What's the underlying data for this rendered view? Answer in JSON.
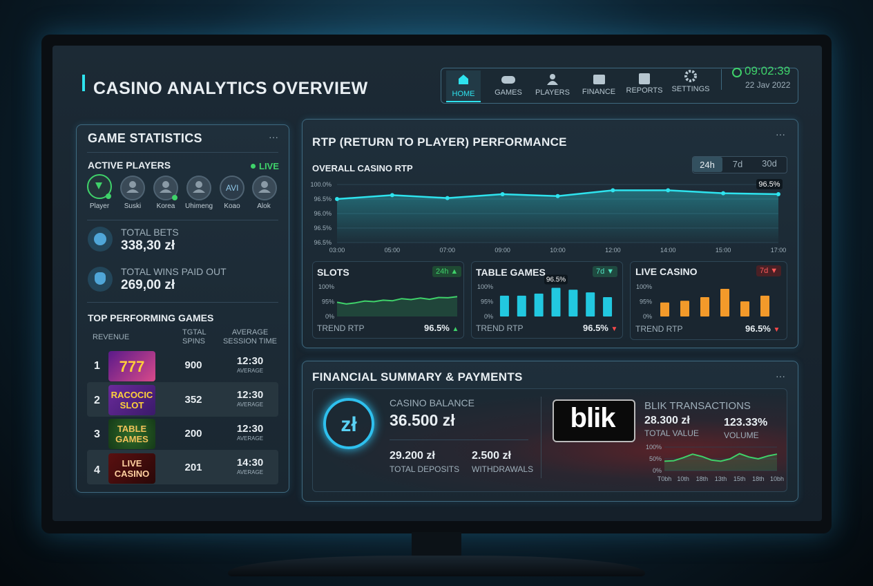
{
  "header": {
    "title": "CASINO ANALYTICS OVERVIEW",
    "nav": [
      "HOME",
      "GAMES",
      "PLAYERS",
      "FINANCE",
      "REPORTS",
      "SETTINGS"
    ],
    "time": "09:02:39",
    "date": "22 Jav 2022"
  },
  "game_statistics": {
    "title": "GAME STATISTICS",
    "active_players": {
      "label": "ACTIVE PLAYERS",
      "status": "LIVE",
      "players": [
        {
          "name": "Player"
        },
        {
          "name": "Suski"
        },
        {
          "name": "Korea"
        },
        {
          "name": "Uhimeng"
        },
        {
          "name": "Koao",
          "initials": "AVI"
        },
        {
          "name": "Alok"
        }
      ]
    },
    "total_bets": {
      "label": "TOTAL BETS",
      "value": "338,30 zł"
    },
    "total_wins": {
      "label": "TOTAL WINS PAID OUT",
      "value": "269,00 zł"
    },
    "top_games": {
      "title": "TOP PERFORMING GAMES",
      "columns": [
        "REVENUE",
        "TGTAL SPINS",
        "AVERAGE SESSION TIME"
      ],
      "rows": [
        {
          "rank": "1",
          "game": "777",
          "spins": "900",
          "time": "12:30",
          "note": "AVERAGE"
        },
        {
          "rank": "2",
          "game": "RACOCIC SLOT",
          "spins": "352",
          "time": "12:30",
          "note": "AVERAGE"
        },
        {
          "rank": "3",
          "game": "TABLE GAMES",
          "spins": "200",
          "time": "12:30",
          "note": "AVERAGE"
        },
        {
          "rank": "4",
          "game": "LIVE CASINO",
          "spins": "201",
          "time": "14:30",
          "note": "AVERAGE"
        }
      ]
    }
  },
  "rtp": {
    "title": "RTP (RETURN TO PLAYER) PERFORMANCE",
    "tabs": [
      "24h",
      "7d",
      "30d"
    ],
    "overall": {
      "type": "line",
      "title": "OVERALL CASINO RTP",
      "color": "#2ee3ee",
      "categories": [
        "03:00",
        "05:00",
        "07:00",
        "09:00",
        "10:00",
        "12:00",
        "14:00",
        "15:00",
        "17:00"
      ],
      "values": [
        96.45,
        96.49,
        96.46,
        96.5,
        96.48,
        96.54,
        96.54,
        96.51,
        96.5
      ],
      "value_labels": [
        null,
        null,
        null,
        null,
        null,
        null,
        null,
        null,
        "96.5%"
      ],
      "y_labels": [
        "100.0%",
        "96.5%",
        "96.0%",
        "96.5%",
        "96.5%"
      ],
      "ylim": [
        96.0,
        96.6
      ]
    },
    "cards": [
      {
        "type": "line",
        "title": "SLOTS",
        "period": "24h",
        "color": "#3fd26a",
        "y_labels": [
          "100%",
          "95%",
          "0%"
        ],
        "ylim": [
          0,
          100
        ],
        "values": [
          48,
          42,
          46,
          52,
          50,
          55,
          53,
          60,
          57,
          62,
          58,
          64,
          63,
          67
        ],
        "footer": "TREND RTP",
        "rtp": "96.5%"
      },
      {
        "type": "bar",
        "title": "TABLE GAMES",
        "period": "7d",
        "color": "#22c8e0",
        "y_labels": [
          "100%",
          "95%",
          "0%"
        ],
        "ylim": [
          0,
          100
        ],
        "values": [
          70,
          70,
          77,
          96.5,
          90,
          81,
          65
        ],
        "value_labels": [
          null,
          null,
          null,
          "96.5%",
          null,
          null,
          null
        ],
        "footer": "TREND RTP",
        "rtp": "96.5%"
      },
      {
        "type": "bar",
        "title": "LIVE CASINO",
        "period": "7d",
        "color": "#f39a2a",
        "y_labels": [
          "100%",
          "95%",
          "0%"
        ],
        "ylim": [
          0,
          100
        ],
        "values": [
          47,
          53,
          65,
          93,
          51,
          70
        ],
        "footer": "TREND RTP",
        "rtp": "96.5%"
      }
    ]
  },
  "finance": {
    "title": "FINANCIAL SUMMARY & PAYMENTS",
    "balance": {
      "icon": "zł",
      "label": "CASINO BALANCE",
      "value": "36.500 zł"
    },
    "deposits": {
      "value": "29.200 zł",
      "label": "TOTAL DEPOSITS"
    },
    "withdrawals": {
      "value": "2.500 zł",
      "label": "WITHDRAWALS"
    },
    "blik": {
      "logo": "blik",
      "title": "BLIK TRANSACTIONS",
      "total": {
        "value": "28.300 zł",
        "label": "TOTAL VALUE"
      },
      "volume": {
        "value": "123.33%",
        "label": "VOLUME"
      },
      "chart": {
        "type": "line",
        "color": "#3fd26a",
        "y_labels": [
          "100%",
          "50%",
          "0%"
        ],
        "ylim": [
          0,
          100
        ],
        "x_labels": [
          "T0bh",
          "10th",
          "18th",
          "13th",
          "15th",
          "18th",
          "10bh"
        ],
        "values": [
          40,
          42,
          55,
          70,
          60,
          45,
          40,
          50,
          72,
          58,
          50,
          62,
          70
        ]
      }
    }
  }
}
